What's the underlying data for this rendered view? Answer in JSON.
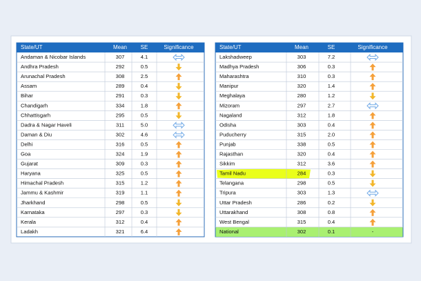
{
  "tables": [
    {
      "header": [
        "State/UT",
        "Mean",
        "SE",
        "Significance"
      ],
      "rows": [
        [
          "Andaman & Nicobar Islands",
          "307",
          "4.1"
        ],
        [
          "Andhra Pradesh",
          "292",
          "0.5"
        ],
        [
          "Arunachal Pradesh",
          "308",
          "2.5"
        ],
        [
          "Assam",
          "289",
          "0.4"
        ],
        [
          "Bihar",
          "291",
          "0.3"
        ],
        [
          "Chandigarh",
          "334",
          "1.8"
        ],
        [
          "Chhattisgarh",
          "295",
          "0.5"
        ],
        [
          "Dadra & Nagar Haveli",
          "311",
          "5.0"
        ],
        [
          "Daman & Diu",
          "302",
          "4.6"
        ],
        [
          "Delhi",
          "316",
          "0.5"
        ],
        [
          "Goa",
          "324",
          "1.9"
        ],
        [
          "Gujarat",
          "309",
          "0.3"
        ],
        [
          "Haryana",
          "325",
          "0.5"
        ],
        [
          "Himachal Pradesh",
          "315",
          "1.2"
        ],
        [
          "Jammu & Kashmir",
          "319",
          "1.1"
        ],
        [
          "Jharkhand",
          "298",
          "0.5"
        ],
        [
          "Karnataka",
          "297",
          "0.3"
        ],
        [
          "Kerala",
          "312",
          "0.4"
        ],
        [
          "Ladakh",
          "321",
          "6.4"
        ]
      ],
      "significance": [
        "similar",
        "lower",
        "higher",
        "lower",
        "lower",
        "higher",
        "lower",
        "similar",
        "similar",
        "higher",
        "higher",
        "higher",
        "higher",
        "higher",
        "higher",
        "lower",
        "lower",
        "higher",
        "higher"
      ]
    },
    {
      "header": [
        "State/UT",
        "Mean",
        "SE",
        "Significance"
      ],
      "rows": [
        [
          "Lakshadweep",
          "303",
          "7.2"
        ],
        [
          "Madhya Pradesh",
          "306",
          "0.3"
        ],
        [
          "Maharashtra",
          "310",
          "0.3"
        ],
        [
          "Manipur",
          "320",
          "1.4"
        ],
        [
          "Meghalaya",
          "280",
          "1.2"
        ],
        [
          "Mizoram",
          "297",
          "2.7"
        ],
        [
          "Nagaland",
          "312",
          "1.8"
        ],
        [
          "Odisha",
          "303",
          "0.4"
        ],
        [
          "Puducherry",
          "315",
          "2.0"
        ],
        [
          "Punjab",
          "338",
          "0.5"
        ],
        [
          "Rajasthan",
          "320",
          "0.4"
        ],
        [
          "Sikkim",
          "312",
          "3.6"
        ],
        [
          "Tamil Nadu",
          "284",
          "0.3"
        ],
        [
          "Telangana",
          "298",
          "0.5"
        ],
        [
          "Tripura",
          "303",
          "1.3"
        ],
        [
          "Uttar Pradesh",
          "286",
          "0.2"
        ],
        [
          "Uttarakhand",
          "308",
          "0.8"
        ],
        [
          "West Bengal",
          "315",
          "0.4"
        ],
        [
          "National",
          "302",
          "0.1"
        ]
      ],
      "significance": [
        "similar",
        "higher",
        "higher",
        "higher",
        "lower",
        "similar",
        "higher",
        "higher",
        "higher",
        "higher",
        "higher",
        "higher",
        "lower",
        "lower",
        "similar",
        "lower",
        "higher",
        "higher",
        "-"
      ],
      "highlighted_row": 12,
      "total_row": 18
    }
  ]
}
